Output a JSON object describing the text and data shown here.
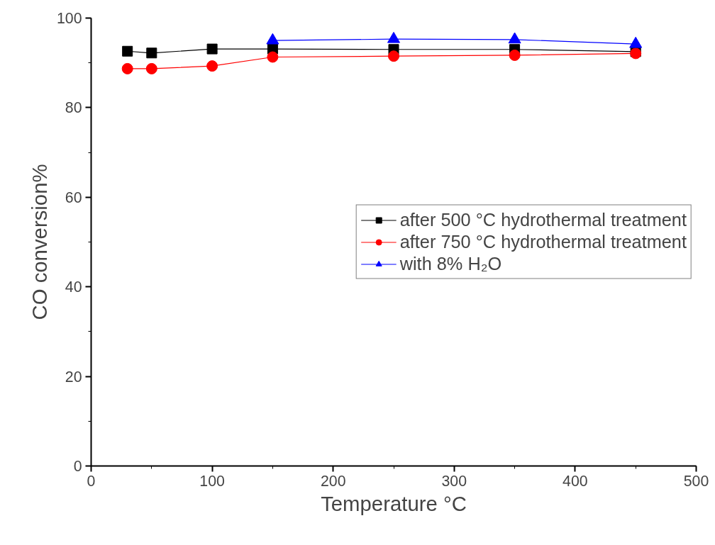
{
  "chart_data": {
    "type": "line",
    "xlabel": "Temperature °C",
    "ylabel": "CO conversion%",
    "x": [
      30,
      50,
      100,
      150,
      250,
      350,
      450
    ],
    "series": [
      {
        "name": "after 500 °C hydrothermal treatment",
        "color": "#000000",
        "marker": "square",
        "values": [
          92.6,
          92.2,
          93.1,
          93.1,
          93.0,
          93.0,
          92.5
        ]
      },
      {
        "name": "after 750 °C hydrothermal treatment",
        "color": "#ff0000",
        "marker": "circle",
        "values": [
          88.7,
          88.7,
          89.3,
          91.3,
          91.5,
          91.7,
          92.1
        ]
      },
      {
        "name": "with 8% H₂O",
        "color": "#0000ff",
        "marker": "triangle",
        "x": [
          150,
          250,
          350,
          450
        ],
        "values": [
          95.0,
          95.3,
          95.2,
          94.2
        ]
      }
    ],
    "xlim": [
      0,
      500
    ],
    "xticks": [
      0,
      100,
      200,
      300,
      400,
      500
    ],
    "ylim": [
      0,
      100
    ],
    "yticks": [
      0,
      20,
      40,
      60,
      80,
      100
    ],
    "grid": false,
    "legend": "right",
    "line_style": "solid"
  }
}
